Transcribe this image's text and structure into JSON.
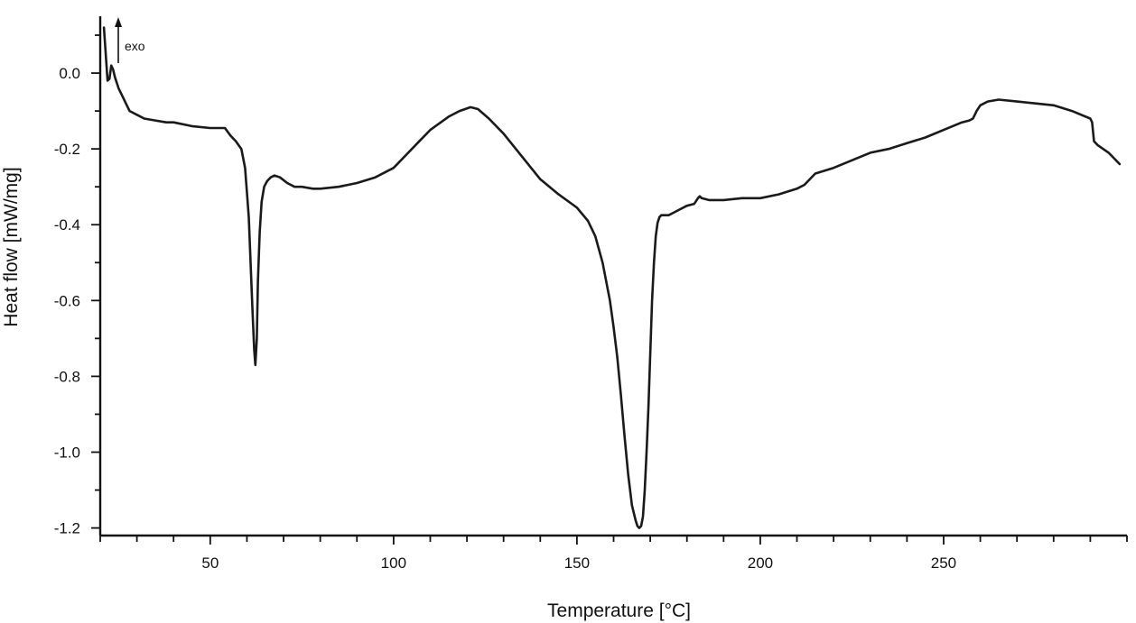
{
  "chart_data": {
    "type": "line",
    "title": "",
    "xlabel": "Temperature [°C]",
    "ylabel": "Heat flow [mW/mg]",
    "xlim": [
      20,
      300
    ],
    "ylim": [
      -1.22,
      0.15
    ],
    "x_ticks": [
      50,
      100,
      150,
      200,
      250
    ],
    "x_minor_step": 10,
    "y_ticks": [
      0.0,
      -0.2,
      -0.4,
      -0.6,
      -0.8,
      -1.0,
      -1.2
    ],
    "y_tick_labels": [
      "0.0",
      "-0.2",
      "-0.4",
      "-0.6",
      "-0.8",
      "-1.0",
      "-1.2"
    ],
    "y_minor_step": 0.1,
    "grid": false,
    "line_color": "#1a1a1a",
    "annotation": {
      "text": "exo",
      "direction": "up"
    },
    "series": [
      {
        "x": [
          21.0,
          21.5,
          22.0,
          22.5,
          23.0,
          23.5,
          24.0,
          25.0,
          26.0,
          27.0,
          28.0,
          30.0,
          32.0,
          35.0,
          38.0,
          40.0,
          45.0,
          50.0,
          54.0,
          55.5,
          57.0,
          58.5,
          59.5,
          60.5,
          61.0,
          61.5,
          62.0,
          62.3,
          62.7,
          63.0,
          63.5,
          64.0,
          64.7,
          65.5,
          66.5,
          67.5,
          69.0,
          71.0,
          73.0,
          75.0,
          78.0,
          80.0,
          85.0,
          90.0,
          95.0,
          100.0,
          103.0,
          107.0,
          110.0,
          115.0,
          118.0,
          121.0,
          123.0,
          126.0,
          130.0,
          135.0,
          140.0,
          145.0,
          150.0,
          153.0,
          155.0,
          157.0,
          159.0,
          160.0,
          161.0,
          162.0,
          163.0,
          164.0,
          165.0,
          166.0,
          166.5,
          167.0,
          167.5,
          168.0,
          168.5,
          169.0,
          169.5,
          170.0,
          170.5,
          171.0,
          171.5,
          172.0,
          172.5,
          173.0,
          174.0,
          175.0,
          176.0,
          178.0,
          180.0,
          182.0,
          183.0,
          183.5,
          184.0,
          186.0,
          190.0,
          195.0,
          200.0,
          205.0,
          210.0,
          212.0,
          215.0,
          220.0,
          225.0,
          230.0,
          235.0,
          240.0,
          245.0,
          250.0,
          255.0,
          257.0,
          258.0,
          258.5,
          259.0,
          260.0,
          262.0,
          265.0,
          270.0,
          275.0,
          280.0,
          285.0,
          290.0,
          290.5,
          291.0,
          292.0,
          295.0,
          298.0
        ],
        "y": [
          0.12,
          0.05,
          -0.02,
          -0.015,
          0.02,
          0.01,
          -0.01,
          -0.04,
          -0.06,
          -0.08,
          -0.1,
          -0.11,
          -0.12,
          -0.125,
          -0.13,
          -0.13,
          -0.14,
          -0.145,
          -0.145,
          -0.165,
          -0.18,
          -0.2,
          -0.25,
          -0.38,
          -0.5,
          -0.62,
          -0.73,
          -0.77,
          -0.7,
          -0.55,
          -0.42,
          -0.34,
          -0.3,
          -0.285,
          -0.275,
          -0.27,
          -0.275,
          -0.29,
          -0.3,
          -0.3,
          -0.305,
          -0.305,
          -0.3,
          -0.29,
          -0.275,
          -0.25,
          -0.22,
          -0.18,
          -0.15,
          -0.115,
          -0.1,
          -0.09,
          -0.095,
          -0.12,
          -0.16,
          -0.22,
          -0.28,
          -0.32,
          -0.355,
          -0.39,
          -0.43,
          -0.5,
          -0.6,
          -0.67,
          -0.75,
          -0.85,
          -0.96,
          -1.06,
          -1.14,
          -1.18,
          -1.195,
          -1.2,
          -1.195,
          -1.17,
          -1.1,
          -1.0,
          -0.88,
          -0.74,
          -0.6,
          -0.5,
          -0.43,
          -0.395,
          -0.38,
          -0.375,
          -0.375,
          -0.375,
          -0.37,
          -0.36,
          -0.35,
          -0.345,
          -0.33,
          -0.325,
          -0.33,
          -0.335,
          -0.335,
          -0.33,
          -0.33,
          -0.32,
          -0.305,
          -0.295,
          -0.265,
          -0.25,
          -0.23,
          -0.21,
          -0.2,
          -0.185,
          -0.17,
          -0.15,
          -0.13,
          -0.125,
          -0.12,
          -0.11,
          -0.1,
          -0.085,
          -0.075,
          -0.07,
          -0.075,
          -0.08,
          -0.085,
          -0.1,
          -0.12,
          -0.13,
          -0.18,
          -0.19,
          -0.21,
          -0.24
        ]
      }
    ]
  }
}
